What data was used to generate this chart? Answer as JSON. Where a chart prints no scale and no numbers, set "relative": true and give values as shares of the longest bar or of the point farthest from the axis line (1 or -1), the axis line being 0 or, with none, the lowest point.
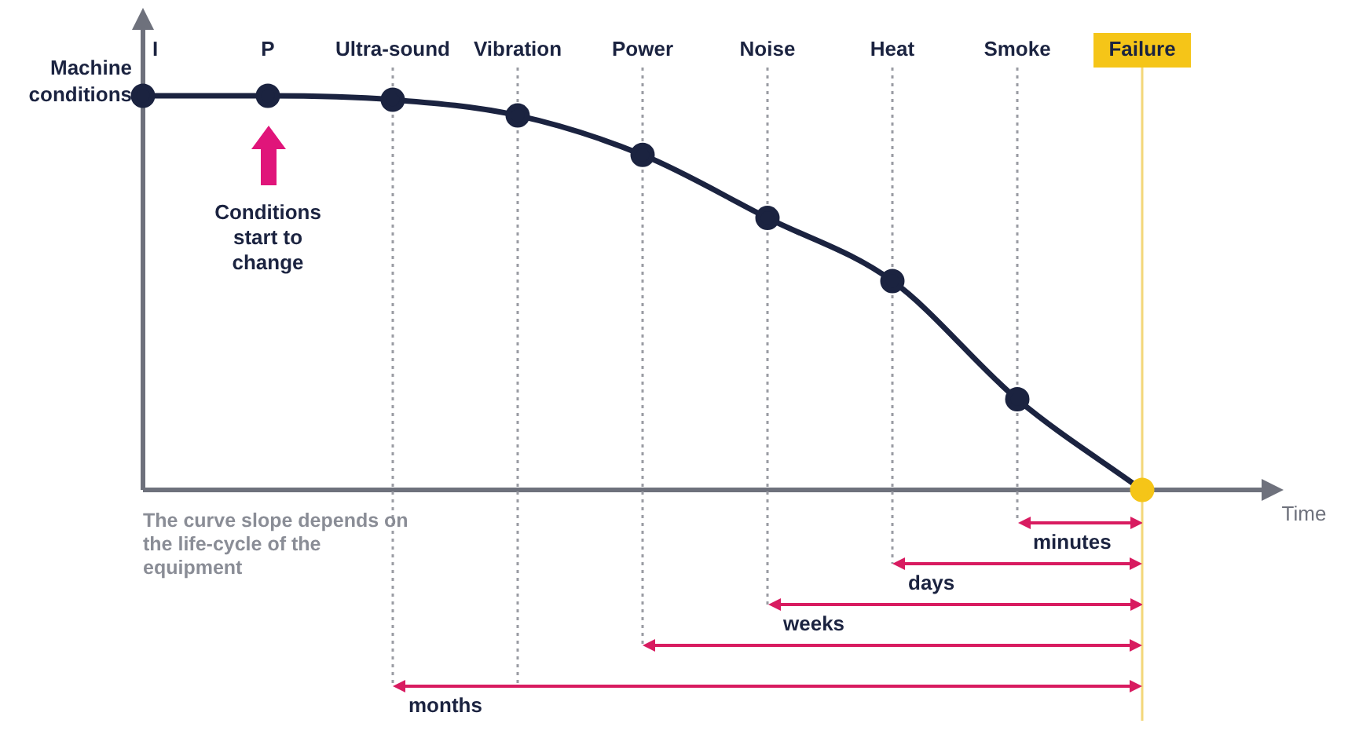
{
  "chart_data": {
    "type": "line",
    "relative": true,
    "ylabel": "Machine conditions",
    "xlabel": "Time",
    "categories": [
      "I",
      "P",
      "Ultra-sound",
      "Vibration",
      "Power",
      "Noise",
      "Heat",
      "Smoke",
      "Failure"
    ],
    "values": [
      1,
      1,
      0.99,
      0.95,
      0.85,
      0.69,
      0.53,
      0.23,
      0
    ],
    "color": "#1b2340",
    "colors": [
      "#1b2340",
      "#1b2340",
      "#1b2340",
      "#1b2340",
      "#1b2340",
      "#1b2340",
      "#1b2340",
      "#1b2340",
      "#f5c518"
    ],
    "marker": "circle",
    "annotations": [
      "Conditions start to change",
      "The curve slope depends on the life-cycle of the equipment"
    ],
    "ref_lines": [
      {
        "axis": "x",
        "value": "Ultra-sound",
        "label": "months",
        "color": "#9a9ca3",
        "line_style": "dotted"
      },
      {
        "axis": "x",
        "value": "Vibration",
        "color": "#9a9ca3",
        "line_style": "dotted"
      },
      {
        "axis": "x",
        "value": "Power",
        "color": "#9a9ca3",
        "line_style": "dotted"
      },
      {
        "axis": "x",
        "value": "Noise",
        "label": "weeks",
        "color": "#9a9ca3",
        "line_style": "dotted"
      },
      {
        "axis": "x",
        "value": "Heat",
        "label": "days",
        "color": "#9a9ca3",
        "line_style": "dotted"
      },
      {
        "axis": "x",
        "value": "Smoke",
        "label": "minutes",
        "color": "#9a9ca3",
        "line_style": "dotted"
      },
      {
        "axis": "x",
        "value": "Failure",
        "color": "#f3d77a",
        "line_style": "solid"
      }
    ]
  }
}
